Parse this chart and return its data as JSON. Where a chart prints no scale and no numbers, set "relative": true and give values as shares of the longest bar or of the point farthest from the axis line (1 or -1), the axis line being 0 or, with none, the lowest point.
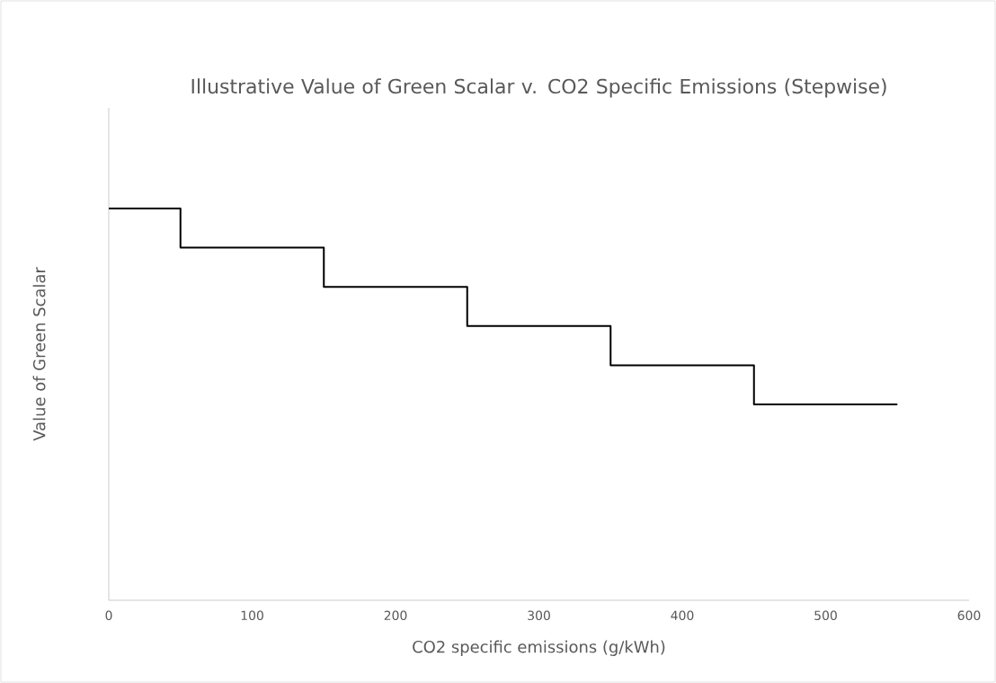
{
  "chart_data": {
    "type": "step",
    "title": "Illustrative Value of Green Scalar v. CO2 Specific Emissions (Stepwise)",
    "xlabel": "CO2 specific emissions (g/kWh)",
    "ylabel": "Value of Green Scalar",
    "relative": true,
    "x": [
      0,
      50,
      150,
      250,
      350,
      450,
      550
    ],
    "series": [
      {
        "color": "#000000",
        "values": [
          1,
          0.9,
          0.8,
          0.7,
          0.6,
          0.5,
          0.5
        ]
      }
    ],
    "xlim": [
      0,
      600
    ],
    "xticks": [
      0,
      100,
      200,
      300,
      400,
      500,
      600
    ],
    "line_style": "solid",
    "marker": "none"
  }
}
